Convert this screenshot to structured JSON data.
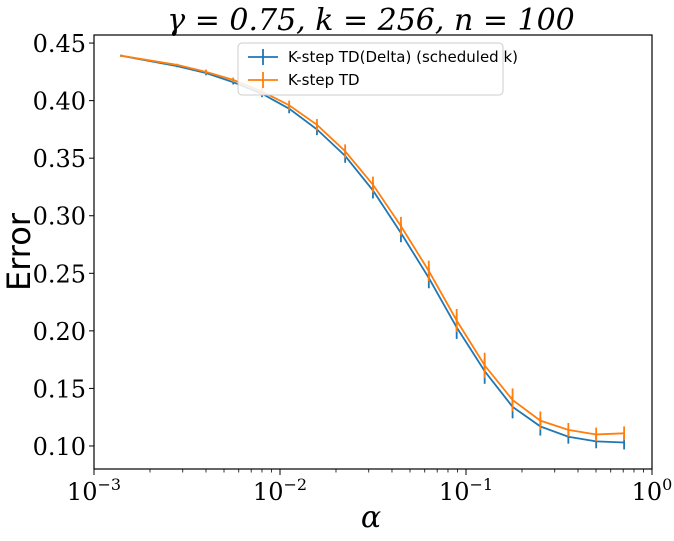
{
  "chart_data": {
    "type": "line",
    "title": "γ = 0.75, k = 256, n = 100",
    "xlabel": "α",
    "ylabel": "Error",
    "xscale": "log",
    "xlim": [
      0.001,
      1
    ],
    "ylim": [
      0.08,
      0.457
    ],
    "xticks": [
      {
        "value": 0.001,
        "base": "10",
        "exp": "−3"
      },
      {
        "value": 0.01,
        "base": "10",
        "exp": "−2"
      },
      {
        "value": 0.1,
        "base": "10",
        "exp": "−1"
      },
      {
        "value": 1,
        "base": "10",
        "exp": "0"
      }
    ],
    "yticks": [
      {
        "value": 0.1,
        "label": "0.10"
      },
      {
        "value": 0.15,
        "label": "0.15"
      },
      {
        "value": 0.2,
        "label": "0.20"
      },
      {
        "value": 0.25,
        "label": "0.25"
      },
      {
        "value": 0.3,
        "label": "0.30"
      },
      {
        "value": 0.35,
        "label": "0.35"
      },
      {
        "value": 0.4,
        "label": "0.40"
      },
      {
        "value": 0.45,
        "label": "0.45"
      }
    ],
    "grid": false,
    "legend_position": "upper center",
    "x": [
      0.0014,
      0.0028,
      0.004,
      0.0056,
      0.008,
      0.0112,
      0.0158,
      0.0224,
      0.0316,
      0.0447,
      0.0631,
      0.0891,
      0.126,
      0.178,
      0.251,
      0.355,
      0.501,
      0.708
    ],
    "series": [
      {
        "name": "K-step TD(Delta) (scheduled k)",
        "color": "#1f77b4",
        "values": [
          0.439,
          0.43,
          0.424,
          0.416,
          0.406,
          0.393,
          0.375,
          0.352,
          0.322,
          0.285,
          0.246,
          0.203,
          0.165,
          0.134,
          0.117,
          0.108,
          0.104,
          0.103
        ],
        "errors": [
          0.001,
          0.001,
          0.002,
          0.002,
          0.003,
          0.004,
          0.005,
          0.006,
          0.007,
          0.008,
          0.009,
          0.01,
          0.011,
          0.01,
          0.008,
          0.006,
          0.006,
          0.006
        ]
      },
      {
        "name": "K-step TD",
        "color": "#ff7f0e",
        "values": [
          0.439,
          0.431,
          0.425,
          0.418,
          0.408,
          0.396,
          0.379,
          0.356,
          0.327,
          0.291,
          0.252,
          0.209,
          0.17,
          0.14,
          0.122,
          0.114,
          0.11,
          0.111
        ],
        "errors": [
          0.001,
          0.001,
          0.002,
          0.002,
          0.003,
          0.004,
          0.005,
          0.006,
          0.007,
          0.008,
          0.009,
          0.01,
          0.011,
          0.01,
          0.008,
          0.006,
          0.006,
          0.006
        ]
      }
    ]
  }
}
